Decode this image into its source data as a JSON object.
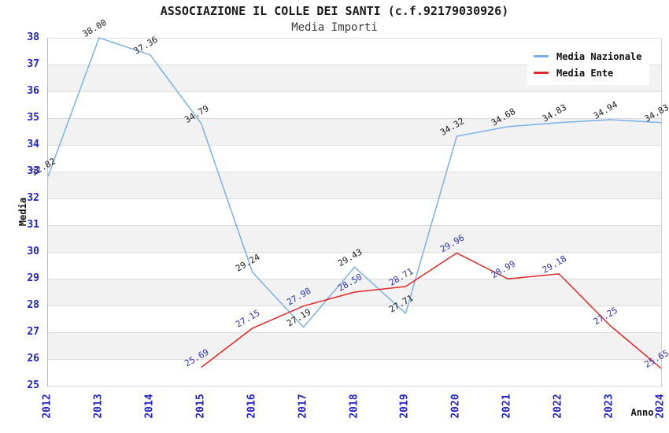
{
  "header": {
    "title": "ASSOCIAZIONE IL COLLE DEI SANTI (c.f.92179030926)",
    "subtitle": "Media Importi"
  },
  "chart_data": {
    "type": "line",
    "x": [
      "2012",
      "2013",
      "2014",
      "2015",
      "2016",
      "2017",
      "2018",
      "2019",
      "2020",
      "2021",
      "2022",
      "2023",
      "2024"
    ],
    "series": [
      {
        "name": "Media Nazionale",
        "color": "#7cb0e8",
        "label_color": "#1a1a1a",
        "values": [
          32.82,
          38.0,
          37.36,
          34.79,
          29.24,
          27.19,
          29.43,
          27.71,
          34.32,
          34.68,
          34.83,
          34.94,
          34.83
        ],
        "labels": [
          "32.82",
          "38.00",
          "37.36",
          "34.79",
          "29.24",
          "27.19",
          "29.43",
          "27.71",
          "34.32",
          "34.68",
          "34.83",
          "34.94",
          "34.83"
        ]
      },
      {
        "name": "Media Ente",
        "color": "#e62626",
        "label_color": "#3030b4",
        "values": [
          null,
          null,
          null,
          25.69,
          27.15,
          27.98,
          28.5,
          28.71,
          29.96,
          28.99,
          29.18,
          27.25,
          25.65
        ],
        "labels": [
          null,
          null,
          null,
          "25.69",
          "27.15",
          "27.98",
          "28.50",
          "28.71",
          "29.96",
          "28.99",
          "29.18",
          "27.25",
          "25.65"
        ]
      }
    ],
    "xlabel": "Anno",
    "ylabel": "Media",
    "ylim": [
      25,
      38
    ],
    "y_ticks": [
      38,
      37,
      36,
      35,
      34,
      33,
      32,
      31,
      30,
      29,
      28,
      27,
      26,
      25
    ],
    "grid": true,
    "bands": true,
    "legend_position": "top-right"
  },
  "colors": {
    "axis_tick": "#2222cd",
    "band_gray": "#f2f2f2",
    "gridline": "#dcdcdc",
    "plot_border": "#bdbdbd",
    "nazionale_line": "#7cb0e8",
    "ente_line": "#e62626",
    "nazionale_label": "#1a1a1a",
    "ente_label": "#3030b4"
  }
}
